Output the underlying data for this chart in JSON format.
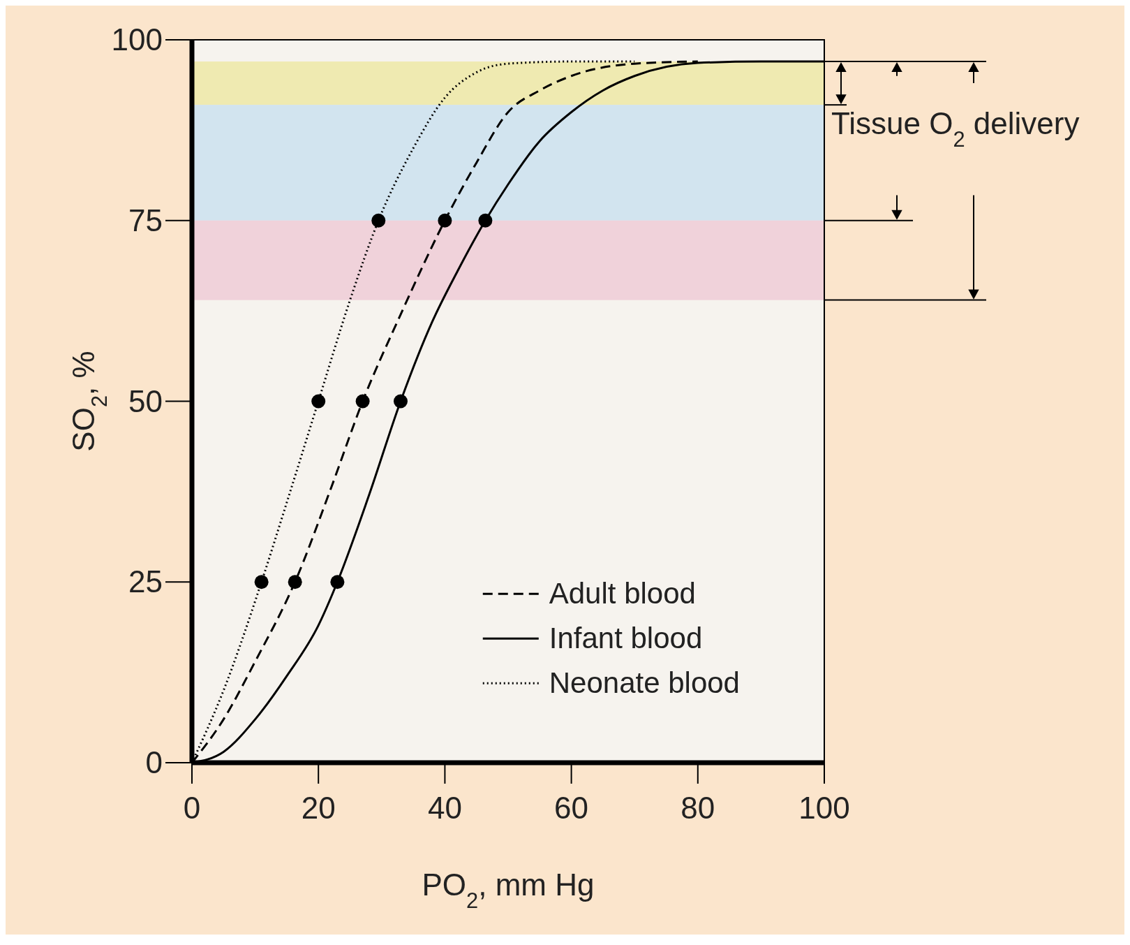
{
  "chart_data": {
    "type": "line",
    "xlabel": "PO$_{2}$, mm Hg",
    "ylabel": "SO$_{2}$, %",
    "xlim": [
      0,
      100
    ],
    "ylim": [
      0,
      100
    ],
    "xticks": [
      0,
      20,
      40,
      60,
      80,
      100
    ],
    "yticks": [
      0,
      25,
      50,
      75,
      100
    ],
    "grid": false,
    "legend": "bottom right",
    "marker": "none",
    "annotations": [
      "Tissue O$_{2}$ delivery"
    ],
    "bands": [
      {
        "axis": "y",
        "from": 91,
        "to": 97,
        "color": "#ede8a6"
      },
      {
        "axis": "y",
        "from": 75,
        "to": 91,
        "color": "#cbe1ee"
      },
      {
        "axis": "y",
        "from": 64,
        "to": 75,
        "color": "#efcbd6"
      }
    ],
    "series": [
      {
        "name": "Adult blood",
        "color": "#000000",
        "line_style": "dashed",
        "x": [
          0,
          5,
          10,
          16.3,
          22,
          27,
          33,
          40,
          45,
          50,
          55,
          60,
          70,
          80
        ],
        "values": [
          0,
          6,
          14,
          25,
          38,
          50,
          62,
          75,
          83,
          90,
          93,
          95,
          96.7,
          97
        ]
      },
      {
        "name": "Infant blood",
        "color": "#000000",
        "line_style": "solid",
        "x": [
          0,
          5,
          10,
          15,
          20,
          23,
          28,
          33,
          38,
          42,
          46.4,
          50,
          55,
          60,
          65,
          70,
          80,
          90,
          100
        ],
        "values": [
          0,
          1.5,
          6,
          12,
          19,
          25,
          37,
          50,
          61,
          68,
          75,
          80,
          86,
          90,
          93,
          95,
          96.8,
          97,
          97
        ]
      },
      {
        "name": "Neonate blood",
        "color": "#000000",
        "line_style": "dotted",
        "x": [
          0,
          5,
          11,
          15,
          20,
          25,
          29.5,
          35,
          40,
          45,
          50,
          60,
          70
        ],
        "values": [
          0,
          10,
          25,
          36,
          50,
          64,
          75,
          85,
          92,
          95.5,
          96.7,
          97,
          97
        ]
      },
      {
        "type": "scatter",
        "color": "#000000",
        "marker": "circle",
        "x": [
          11,
          20,
          29.5,
          16.3,
          27,
          40,
          23,
          33,
          46.4
        ],
        "values": [
          25,
          50,
          75,
          25,
          50,
          75,
          25,
          50,
          75
        ]
      }
    ]
  }
}
